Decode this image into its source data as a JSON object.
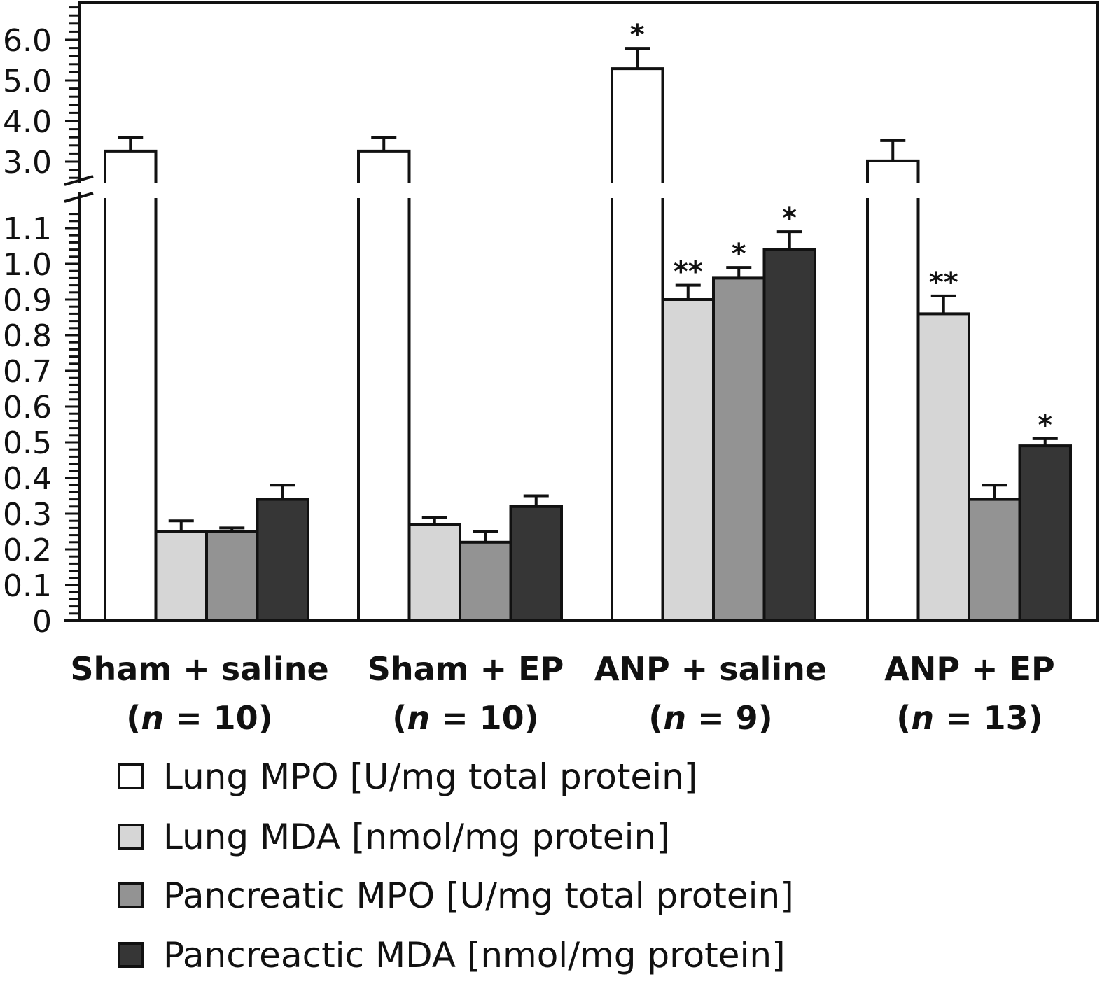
{
  "chart_data": {
    "type": "bar",
    "title": "",
    "xlabel": "",
    "ylabel": "",
    "axis_break": true,
    "lower_ylim": [
      0,
      1.1
    ],
    "upper_ylim": [
      2.8,
      6.5
    ],
    "lower_ticks": [
      "0",
      "0.1",
      "0.2",
      "0.3",
      "0.4",
      "0.5",
      "0.6",
      "0.7",
      "0.8",
      "0.9",
      "1.0",
      "1.1"
    ],
    "upper_ticks": [
      "3.0",
      "4.0",
      "5.0",
      "6.0"
    ],
    "grid": false,
    "legend_position": "bottom",
    "categories": [
      {
        "name": "Sham + saline",
        "n_label": "n",
        "n_value": "= 10)"
      },
      {
        "name": "Sham + EP",
        "n_label": "n",
        "n_value": "= 10)"
      },
      {
        "name": "ANP + saline",
        "n_label": "n",
        "n_value": "= 9)"
      },
      {
        "name": "ANP + EP",
        "n_label": "n",
        "n_value": "= 13)"
      }
    ],
    "series": [
      {
        "name": "Lung MPO [U/mg total protein]",
        "color": "#ffffff",
        "values": [
          3.26,
          3.26,
          5.29,
          3.02
        ],
        "error_upper": [
          3.59,
          3.59,
          5.79,
          3.52
        ],
        "significance": [
          "",
          "",
          "*",
          ""
        ]
      },
      {
        "name": "Lung MDA [nmol/mg protein]",
        "color": "#d6d6d6",
        "values": [
          0.25,
          0.27,
          0.9,
          0.86
        ],
        "error_upper": [
          0.28,
          0.29,
          0.94,
          0.91
        ],
        "significance": [
          "",
          "",
          "**",
          "**"
        ]
      },
      {
        "name": "Pancreatic MPO [U/mg total protein]",
        "color": "#939393",
        "values": [
          0.25,
          0.22,
          0.96,
          0.34
        ],
        "error_upper": [
          0.26,
          0.25,
          0.99,
          0.38
        ],
        "significance": [
          "",
          "",
          "*",
          ""
        ]
      },
      {
        "name": "Pancreactic MDA [nmol/mg protein]",
        "color": "#363636",
        "values": [
          0.34,
          0.32,
          1.04,
          0.49
        ],
        "error_upper": [
          0.38,
          0.35,
          1.09,
          0.51
        ],
        "significance": [
          "",
          "",
          "*",
          "*"
        ]
      }
    ]
  }
}
